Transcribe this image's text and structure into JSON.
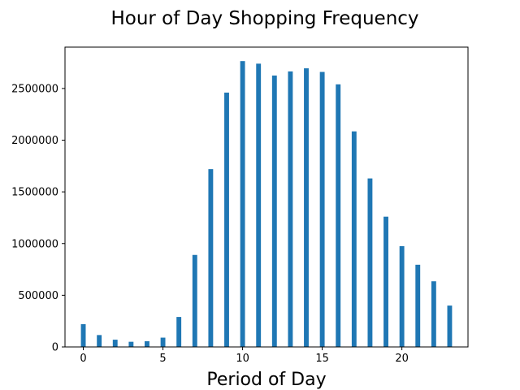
{
  "chart_data": {
    "type": "bar",
    "title": "Hour of Day Shopping Frequency",
    "xlabel": "Period of Day",
    "ylabel": "",
    "x": [
      0,
      1,
      2,
      3,
      4,
      5,
      6,
      7,
      8,
      9,
      10,
      11,
      12,
      13,
      14,
      15,
      16,
      17,
      18,
      19,
      20,
      21,
      22,
      23
    ],
    "values": [
      220000,
      115000,
      70000,
      50000,
      55000,
      90000,
      290000,
      890000,
      1720000,
      2460000,
      2765000,
      2740000,
      2625000,
      2665000,
      2695000,
      2660000,
      2540000,
      2085000,
      1630000,
      1260000,
      975000,
      795000,
      635000,
      400000
    ],
    "xlim": [
      -1.15,
      24.15
    ],
    "ylim": [
      0,
      2900000
    ],
    "xticks": [
      "0",
      "5",
      "10",
      "15",
      "20"
    ],
    "yticks": [
      "0",
      "500000",
      "1000000",
      "1500000",
      "2000000",
      "2500000"
    ],
    "bar_color": "#1f77b4",
    "grid": false,
    "legend": "none"
  }
}
